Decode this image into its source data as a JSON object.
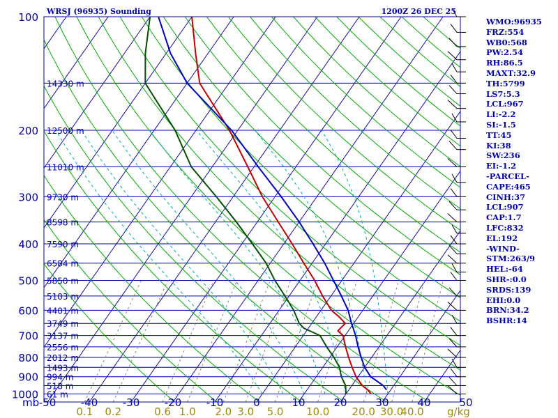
{
  "chart_data": {
    "type": "skew-t",
    "title_left": "WRSJ (96935) Sounding",
    "title_right": "1200Z 26 DEC 25",
    "pressure_unit_label": "mb",
    "pressure_ticks": [
      {
        "p": 100,
        "label": "100"
      },
      {
        "p": 200,
        "label": "200"
      },
      {
        "p": 300,
        "label": "300"
      },
      {
        "p": 400,
        "label": "400"
      },
      {
        "p": 500,
        "label": "500"
      },
      {
        "p": 600,
        "label": "600"
      },
      {
        "p": 700,
        "label": "700"
      },
      {
        "p": 800,
        "label": "800"
      },
      {
        "p": 900,
        "label": "900"
      },
      {
        "p": 1000,
        "label": "1000"
      }
    ],
    "height_levels": [
      {
        "p": 150,
        "label": "14330 m"
      },
      {
        "p": 200,
        "label": "12500 m"
      },
      {
        "p": 250,
        "label": "11010 m"
      },
      {
        "p": 300,
        "label": "9730 m"
      },
      {
        "p": 350,
        "label": "8598 m"
      },
      {
        "p": 400,
        "label": "7590 m"
      },
      {
        "p": 450,
        "label": "6584 m"
      },
      {
        "p": 500,
        "label": "5850 m"
      },
      {
        "p": 550,
        "label": "5103 m"
      },
      {
        "p": 600,
        "label": "4401 m"
      },
      {
        "p": 650,
        "label": "3749 m"
      },
      {
        "p": 700,
        "label": "3137 m"
      },
      {
        "p": 750,
        "label": "2556 m"
      },
      {
        "p": 800,
        "label": "2012 m"
      },
      {
        "p": 850,
        "label": "1493 m"
      },
      {
        "p": 900,
        "label": "994 m"
      },
      {
        "p": 950,
        "label": "518 m"
      },
      {
        "p": 1000,
        "label": "61 m"
      }
    ],
    "temperature_ticks": [
      -50,
      -40,
      -30,
      -20,
      -10,
      0,
      10,
      20,
      30,
      40,
      50
    ],
    "temperature_tick_labels": [
      "-50",
      "-40",
      "-30",
      "-20",
      "-10",
      "0",
      "10",
      "20",
      "30",
      "40",
      "50"
    ],
    "mixing_ratio_labels": [
      {
        "w": 0.1,
        "label": "0.1"
      },
      {
        "w": 0.2,
        "label": "0.2"
      },
      {
        "w": 0.6,
        "label": "0.6"
      },
      {
        "w": 1.0,
        "label": "1.0"
      },
      {
        "w": 2.0,
        "label": "2.0"
      },
      {
        "w": 3.0,
        "label": "3.0"
      },
      {
        "w": 5.0,
        "label": "5.0"
      },
      {
        "w": 10.0,
        "label": "10.0"
      },
      {
        "w": 20.0,
        "label": "20.0"
      },
      {
        "w": 30.0,
        "label": "30.0"
      },
      {
        "w": 40.0,
        "label": "40.0"
      }
    ],
    "mixing_ratio_unit": "g/kg",
    "series": [
      {
        "name": "temperature",
        "color": "#c00000",
        "points": [
          [
            1000,
            26.0
          ],
          [
            975,
            24.5
          ],
          [
            950,
            22.5
          ],
          [
            900,
            19.5
          ],
          [
            850,
            17.0
          ],
          [
            800,
            14.5
          ],
          [
            750,
            12.0
          ],
          [
            700,
            9.5
          ],
          [
            680,
            7.5
          ],
          [
            650,
            8.0
          ],
          [
            625,
            5.5
          ],
          [
            600,
            2.5
          ],
          [
            550,
            -2.0
          ],
          [
            500,
            -6.5
          ],
          [
            450,
            -12.0
          ],
          [
            400,
            -18.0
          ],
          [
            350,
            -25.0
          ],
          [
            300,
            -33.0
          ],
          [
            250,
            -41.5
          ],
          [
            200,
            -52.0
          ],
          [
            150,
            -67.0
          ],
          [
            125,
            -73.0
          ],
          [
            100,
            -80.0
          ]
        ]
      },
      {
        "name": "dewpoint",
        "color": "#005000",
        "points": [
          [
            1000,
            20.0
          ],
          [
            950,
            18.5
          ],
          [
            900,
            16.0
          ],
          [
            850,
            14.0
          ],
          [
            800,
            11.0
          ],
          [
            750,
            7.5
          ],
          [
            700,
            4.0
          ],
          [
            670,
            -1.0
          ],
          [
            650,
            -3.0
          ],
          [
            600,
            -6.5
          ],
          [
            550,
            -11.0
          ],
          [
            500,
            -16.0
          ],
          [
            450,
            -21.0
          ],
          [
            400,
            -27.5
          ],
          [
            350,
            -35.0
          ],
          [
            300,
            -44.0
          ],
          [
            250,
            -55.0
          ],
          [
            200,
            -65.0
          ],
          [
            150,
            -80.0
          ],
          [
            125,
            -85.0
          ],
          [
            100,
            -90.0
          ]
        ]
      },
      {
        "name": "parcel",
        "color": "#0000c0",
        "points": [
          [
            975,
            29.0
          ],
          [
            950,
            27.5
          ],
          [
            900,
            23.0
          ],
          [
            850,
            20.0
          ],
          [
            800,
            17.5
          ],
          [
            750,
            15.0
          ],
          [
            700,
            12.5
          ],
          [
            650,
            9.5
          ],
          [
            600,
            6.5
          ],
          [
            550,
            2.5
          ],
          [
            500,
            -2.0
          ],
          [
            450,
            -7.0
          ],
          [
            400,
            -13.0
          ],
          [
            350,
            -20.0
          ],
          [
            300,
            -28.5
          ],
          [
            250,
            -39.0
          ],
          [
            200,
            -51.5
          ],
          [
            150,
            -70.0
          ],
          [
            125,
            -79.0
          ],
          [
            100,
            -88.0
          ]
        ]
      }
    ],
    "wind_pressures": [
      100,
      110,
      120,
      130,
      140,
      150,
      160,
      175,
      190,
      210,
      225,
      250,
      275,
      300,
      325,
      350,
      375,
      400,
      425,
      450,
      475,
      500,
      550,
      600,
      650,
      700,
      750,
      800,
      850,
      900,
      950,
      1000
    ],
    "dry_adiabat_thetas": [
      250,
      260,
      270,
      280,
      290,
      300,
      310,
      320,
      330,
      340,
      350,
      360,
      370,
      380,
      390,
      400,
      410,
      420,
      430,
      440,
      450,
      460,
      470,
      480
    ],
    "moist_adiabat_thetas": [
      0,
      5,
      10,
      15,
      20,
      25,
      30
    ],
    "mixing_ratio_lines": [
      0.1,
      0.2,
      0.6,
      1.0,
      2.0,
      3.0,
      5.0,
      10.0,
      20.0,
      30.0,
      40.0
    ]
  },
  "indices": [
    "WMO:96935",
    "FRZ:554",
    "WB0:568",
    "PW:2.54",
    "RH:86.5",
    "MAXT:32.9",
    "TH:5799",
    "LS7:5.3",
    "LCL:967",
    "LI:-2.2",
    "SI:-1.5",
    "TT:45",
    "KI:38",
    "SW:236",
    "EI:-1.2",
    "-PARCEL-",
    "CAPE:465",
    "CINH:37",
    "LCL:907",
    "CAP:1.7",
    "LFC:832",
    "EL:192",
    "-WIND-",
    "STM:263/9",
    "HEL:-64",
    "SHR-:0.0",
    "SRDS:139",
    "EHI:0.0",
    "BRN:34.2",
    "BSHR:14"
  ],
  "colors": {
    "frame": "#0000aa",
    "isotherm": "#1010a0",
    "dry_adiabat": "#00aa00",
    "moist_adiabat": "#00aaaa",
    "mixing_ratio": "#8a8a60",
    "temperature": "#c00000",
    "dewpoint": "#005000",
    "parcel": "#0000c0",
    "wind": "#000000"
  }
}
